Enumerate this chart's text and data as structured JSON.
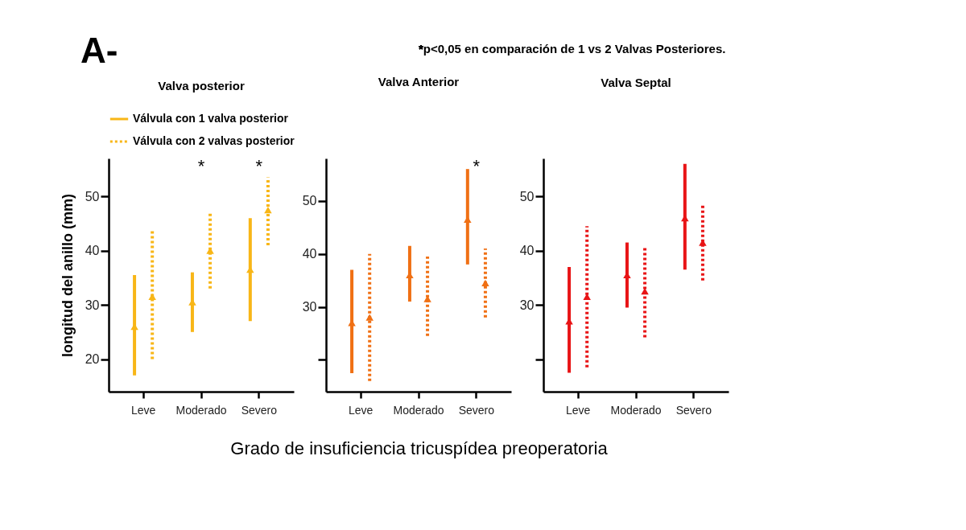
{
  "chart_data": [
    {
      "type": "scatter",
      "title": "Valva posterior",
      "ylabel": "longitud del anillo (mm)",
      "categories": [
        "Leve",
        "Moderado",
        "Severo"
      ],
      "ylim": [
        14,
        57
      ],
      "yticks": [
        20,
        30,
        40,
        50
      ],
      "legend": "top left",
      "marker": "triangle",
      "annotations": [
        "A-",
        "*p<0,05 en comparación de 1 vs 2 Valvas Posteriores.",
        "*",
        "*"
      ],
      "series": [
        {
          "name": "Válvula con 1 valva posterior",
          "color": "#f8b617",
          "line_style": "solid",
          "values": [
            26,
            30.5,
            36.5
          ],
          "errors": [
            [
              17,
              35.5
            ],
            [
              25,
              36
            ],
            [
              27,
              46
            ]
          ]
        },
        {
          "name": "Válvula con 2 valvas posterior",
          "color": "#f8b617",
          "line_style": "dotted",
          "values": [
            31.5,
            40,
            47.5
          ],
          "errors": [
            [
              20,
              44
            ],
            [
              33,
              47
            ],
            [
              41,
              53.5
            ]
          ]
        }
      ]
    },
    {
      "type": "scatter",
      "title": "Valva Anterior",
      "xlabel": "Grado de insuficiencia tricuspídea preoperatoria",
      "categories": [
        "Leve",
        "Moderado",
        "Severo"
      ],
      "ylim": [
        14,
        58
      ],
      "yticks": [
        {
          "value": 20,
          "label": null
        },
        30,
        40,
        50
      ],
      "marker": "triangle",
      "annotations": [
        "*"
      ],
      "series": [
        {
          "color": "#f07014",
          "line_style": "solid",
          "values": [
            27,
            36,
            46.5
          ],
          "errors": [
            [
              17.5,
              37
            ],
            [
              31,
              41.5
            ],
            [
              38,
              56
            ]
          ]
        },
        {
          "color": "#f07014",
          "line_style": "dotted",
          "values": [
            28,
            31.5,
            34.5
          ],
          "errors": [
            [
              16,
              40
            ],
            [
              24.5,
              39.5
            ],
            [
              28,
              41
            ]
          ]
        }
      ]
    },
    {
      "type": "scatter",
      "title": "Valva Septal",
      "categories": [
        "Leve",
        "Moderado",
        "Severo"
      ],
      "ylim": [
        14,
        57
      ],
      "yticks": [
        {
          "value": 20,
          "label": null
        },
        30,
        40,
        50
      ],
      "marker": "triangle",
      "series": [
        {
          "color": "#e81416",
          "line_style": "solid",
          "values": [
            27,
            35.5,
            46
          ],
          "errors": [
            [
              17.5,
              37
            ],
            [
              29.5,
              41.5
            ],
            [
              36.5,
              56
            ]
          ]
        },
        {
          "color": "#e81416",
          "line_style": "dotted",
          "values": [
            31.5,
            32.5,
            41.5
          ],
          "errors": [
            [
              18.5,
              44.5
            ],
            [
              24,
              40.5
            ],
            [
              34.5,
              48.5
            ]
          ]
        }
      ]
    }
  ]
}
